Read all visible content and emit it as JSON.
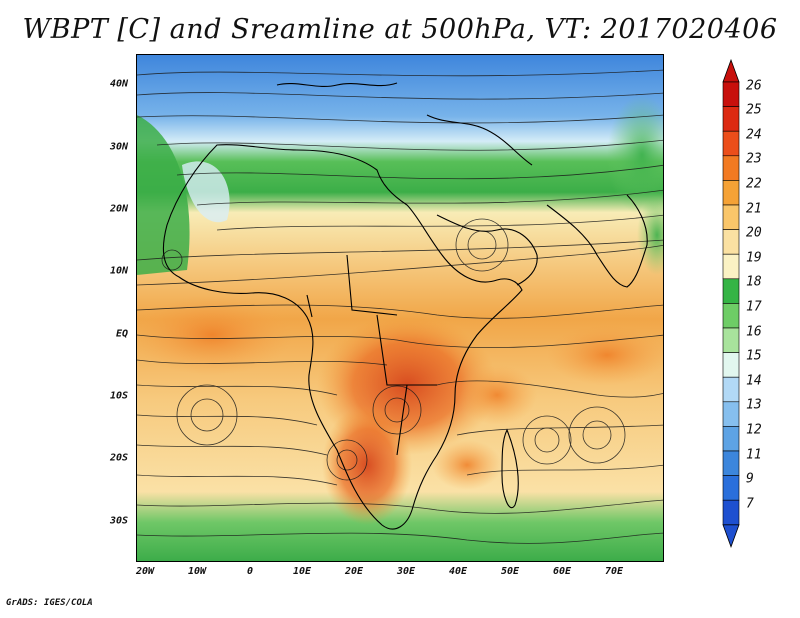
{
  "title": "WBPT [C] and Sreamline at 500hPa, VT: 2017020406",
  "footer": "GrADS: IGES/COLA",
  "lat_labels": [
    "40N",
    "30N",
    "20N",
    "10N",
    "EQ",
    "10S",
    "20S",
    "30S"
  ],
  "lon_labels": [
    "20W",
    "10W",
    "0",
    "10E",
    "20E",
    "30E",
    "40E",
    "50E",
    "60E",
    "70E"
  ],
  "colorbar": {
    "labels": [
      "26",
      "25",
      "24",
      "23",
      "22",
      "21",
      "20",
      "19",
      "18",
      "17",
      "16",
      "15",
      "14",
      "13",
      "12",
      "11",
      "9",
      "7"
    ],
    "colors": [
      "#c8100c",
      "#dc2a12",
      "#ec4e1a",
      "#f27a22",
      "#f5a236",
      "#fac66a",
      "#fbe1a2",
      "#fbf2c4",
      "#35b445",
      "#6ecd66",
      "#a8e39c",
      "#e2f7ef",
      "#b2d9f6",
      "#86bfee",
      "#5ea3e4",
      "#3c86dc",
      "#2a6fdb",
      "#1e50d0"
    ]
  }
}
